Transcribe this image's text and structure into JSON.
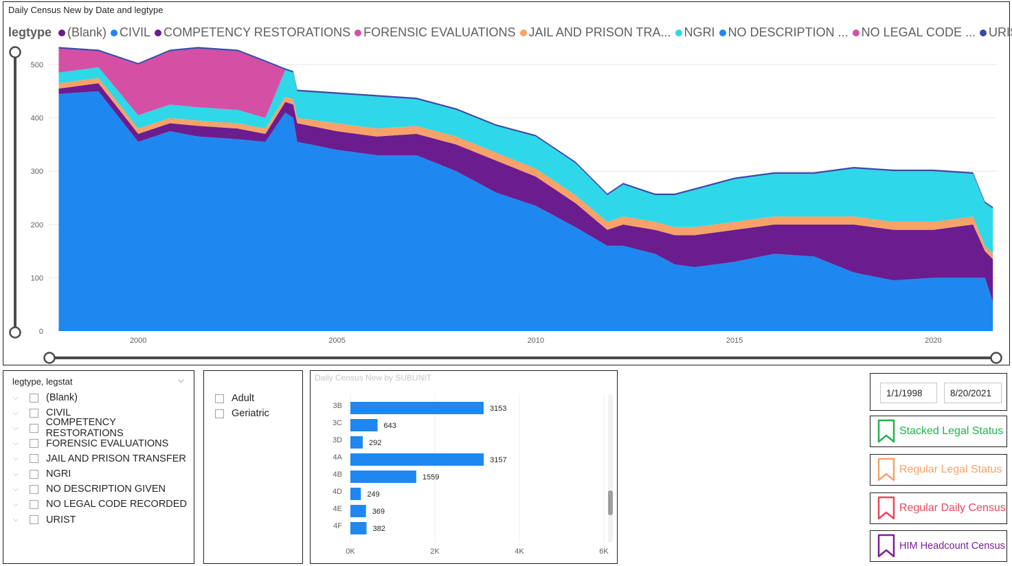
{
  "main_chart": {
    "title": "Daily Census New by Date and legtype",
    "legend_title": "legtype",
    "legend": [
      {
        "label": "(Blank)",
        "color": "#6b1c8f"
      },
      {
        "label": "CIVIL",
        "color": "#1e88f0"
      },
      {
        "label": "COMPETENCY RESTORATIONS",
        "color": "#6b1c8f"
      },
      {
        "label": "FORENSIC EVALUATIONS",
        "color": "#d54fa5"
      },
      {
        "label": "JAIL AND PRISON TRA...",
        "color": "#f8a169"
      },
      {
        "label": "NGRI",
        "color": "#2ed8e8"
      },
      {
        "label": "NO DESCRIPTION ...",
        "color": "#1e88f0"
      },
      {
        "label": "NO LEGAL CODE ...",
        "color": "#d54fa5"
      },
      {
        "label": "URIST",
        "color": "#3a4aa8"
      }
    ]
  },
  "chart_data": [
    {
      "type": "area",
      "title": "Daily Census New by Date and legtype",
      "xlabel": "",
      "ylabel": "",
      "x": [
        1998.0,
        1999.0,
        2000.0,
        2000.8,
        2001.5,
        2002.5,
        2003.2,
        2003.7,
        2003.9,
        2004.0,
        2005.0,
        2006.0,
        2007.0,
        2008.0,
        2009.0,
        2010.0,
        2011.0,
        2011.8,
        2012.2,
        2013.0,
        2013.5,
        2014.0,
        2015.0,
        2016.0,
        2017.0,
        2018.0,
        2019.0,
        2020.0,
        2021.0,
        2021.3,
        2021.5
      ],
      "series": [
        {
          "name": "CIVIL",
          "values": [
            445,
            450,
            355,
            375,
            365,
            360,
            355,
            410,
            400,
            355,
            340,
            330,
            330,
            300,
            260,
            235,
            195,
            160,
            160,
            145,
            125,
            120,
            130,
            145,
            140,
            110,
            95,
            100,
            100,
            100,
            55
          ]
        },
        {
          "name": "COMPETENCY RESTORATIONS",
          "values": [
            10,
            15,
            15,
            15,
            20,
            20,
            15,
            20,
            25,
            35,
            35,
            35,
            40,
            50,
            60,
            55,
            45,
            30,
            40,
            45,
            55,
            60,
            60,
            55,
            60,
            90,
            95,
            90,
            100,
            50,
            80
          ]
        },
        {
          "name": "JAIL AND PRISON TRANSFER",
          "values": [
            10,
            10,
            10,
            10,
            10,
            10,
            10,
            10,
            10,
            10,
            15,
            15,
            15,
            15,
            15,
            15,
            15,
            15,
            15,
            15,
            15,
            15,
            15,
            15,
            15,
            15,
            15,
            15,
            15,
            10,
            10
          ]
        },
        {
          "name": "NGRI",
          "values": [
            20,
            20,
            25,
            25,
            25,
            25,
            20,
            50,
            50,
            50,
            55,
            60,
            50,
            50,
            50,
            60,
            60,
            50,
            60,
            50,
            60,
            70,
            80,
            80,
            80,
            90,
            95,
            95,
            80,
            80,
            85
          ]
        },
        {
          "name": "FORENSIC EVALUATIONS",
          "values": [
            45,
            30,
            95,
            100,
            110,
            110,
            105,
            0,
            0,
            0,
            0,
            0,
            0,
            0,
            0,
            0,
            0,
            0,
            0,
            0,
            0,
            0,
            0,
            0,
            0,
            0,
            0,
            0,
            0,
            0,
            0
          ]
        },
        {
          "name": "URIST",
          "values": [
            3,
            3,
            3,
            3,
            3,
            3,
            3,
            3,
            3,
            3,
            3,
            3,
            3,
            3,
            3,
            3,
            3,
            3,
            3,
            3,
            3,
            3,
            3,
            3,
            3,
            3,
            3,
            3,
            3,
            3,
            3
          ]
        }
      ],
      "ylim": [
        0,
        540
      ],
      "xlim": [
        1997.75,
        2021.6
      ],
      "yticks": [
        0,
        100,
        200,
        300,
        400,
        500
      ],
      "xticks": [
        2000,
        2005,
        2010,
        2015,
        2020
      ],
      "grid": true,
      "legend_position": "top"
    },
    {
      "type": "bar",
      "title": "Daily Census New by SUBUNIT",
      "orientation": "horizontal",
      "categories": [
        "3B",
        "3C",
        "3D",
        "4A",
        "4B",
        "4D",
        "4E",
        "4F"
      ],
      "values": [
        3153,
        643,
        292,
        3157,
        1559,
        249,
        369,
        382
      ],
      "xlim": [
        0,
        6000
      ],
      "xticks": [
        "0K",
        "2K",
        "4K",
        "6K"
      ],
      "color": "#1e88f0",
      "grid": true
    }
  ],
  "legtype_slicer": {
    "header": "legtype, legstat",
    "items": [
      "(Blank)",
      "CIVIL",
      "COMPETENCY RESTORATIONS",
      "FORENSIC EVALUATIONS",
      "JAIL AND PRISON TRANSFER",
      "NGRI",
      "NO DESCRIPTION GIVEN",
      "NO LEGAL CODE RECORDED",
      "URIST"
    ]
  },
  "age_slicer": {
    "items": [
      "Adult",
      "Geriatric"
    ]
  },
  "date_range": {
    "start": "1/1/1998",
    "end": "8/20/2021"
  },
  "nav_buttons": [
    {
      "label": "Stacked Legal Status",
      "color": "#1fb24a"
    },
    {
      "label": "Regular Legal Status",
      "color": "#f8a169"
    },
    {
      "label": "Regular Daily Census",
      "color": "#e8475e"
    },
    {
      "label": "HIM Headcount Census",
      "color": "#7a1e99"
    }
  ]
}
